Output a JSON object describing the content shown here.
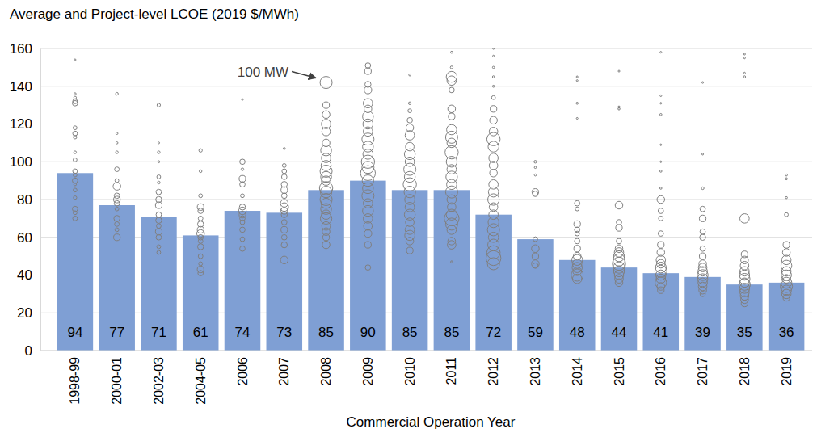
{
  "chart_data": {
    "type": "bar",
    "title": "Average and Project-level LCOE (2019 $/MWh)",
    "x_label": "Commercial Operation Year",
    "categories": [
      "1998-99",
      "2000-01",
      "2002-03",
      "2004-05",
      "2006",
      "2007",
      "2008",
      "2009",
      "2010",
      "2011",
      "2012",
      "2013",
      "2014",
      "2015",
      "2016",
      "2017",
      "2018",
      "2019"
    ],
    "values": [
      94,
      77,
      71,
      61,
      74,
      73,
      85,
      90,
      85,
      85,
      72,
      59,
      48,
      44,
      41,
      39,
      35,
      36
    ],
    "color": "#7f9fd4",
    "data_labels": true,
    "ylim": [
      0,
      160
    ],
    "yticks": [
      0,
      20,
      40,
      60,
      80,
      100,
      120,
      140,
      160
    ],
    "grid": true,
    "annotation": {
      "text": "100 MW",
      "category": "2008",
      "y": 142
    },
    "projects": [
      {
        "category": "1998-99",
        "y": [
          154,
          136,
          134,
          131,
          132,
          118,
          115,
          113,
          105,
          101,
          95,
          93,
          90,
          88,
          85,
          81,
          75,
          73,
          70
        ],
        "size": [
          2,
          3,
          5,
          20,
          15,
          10,
          15,
          8,
          5,
          10,
          15,
          10,
          20,
          5,
          10,
          8,
          20,
          10,
          15
        ]
      },
      {
        "category": "2000-01",
        "y": [
          136,
          115,
          110,
          105,
          96,
          90,
          87,
          82,
          80,
          78,
          75,
          70,
          67,
          64,
          60
        ],
        "size": [
          5,
          3,
          3,
          5,
          15,
          10,
          40,
          20,
          30,
          20,
          10,
          25,
          15,
          10,
          30
        ]
      },
      {
        "category": "2002-03",
        "y": [
          130,
          110,
          105,
          100,
          92,
          89,
          84,
          80,
          77,
          72,
          69,
          66,
          63,
          60,
          55,
          52
        ],
        "size": [
          8,
          2,
          5,
          3,
          10,
          5,
          20,
          25,
          30,
          20,
          25,
          15,
          30,
          20,
          10,
          10
        ]
      },
      {
        "category": "2004-05",
        "y": [
          106,
          95,
          82,
          76,
          74,
          70,
          67,
          64,
          62,
          60,
          58,
          55,
          50,
          46,
          43,
          41
        ],
        "size": [
          8,
          5,
          10,
          30,
          20,
          15,
          25,
          30,
          40,
          20,
          15,
          25,
          15,
          10,
          30,
          20
        ]
      },
      {
        "category": "2006",
        "y": [
          133,
          100,
          96,
          91,
          88,
          82,
          76,
          74,
          72,
          70,
          68,
          64,
          59,
          54
        ],
        "size": [
          2,
          20,
          5,
          30,
          20,
          10,
          25,
          40,
          30,
          20,
          15,
          20,
          15,
          20
        ]
      },
      {
        "category": "2007",
        "y": [
          107,
          98,
          95,
          92,
          88,
          85,
          82,
          78,
          76,
          74,
          72,
          68,
          64,
          60,
          56,
          48
        ],
        "size": [
          3,
          10,
          15,
          20,
          25,
          30,
          20,
          40,
          50,
          30,
          25,
          20,
          30,
          20,
          25,
          40
        ]
      },
      {
        "category": "2008",
        "y": [
          142,
          130,
          125,
          120,
          116,
          110,
          106,
          102,
          98,
          95,
          92,
          90,
          86,
          84,
          80,
          78,
          75,
          72,
          70,
          66,
          63,
          60,
          56
        ],
        "size": [
          100,
          30,
          40,
          60,
          50,
          40,
          80,
          60,
          70,
          100,
          80,
          60,
          120,
          90,
          100,
          70,
          80,
          60,
          90,
          50,
          40,
          30,
          40
        ]
      },
      {
        "category": "2009",
        "y": [
          151,
          148,
          141,
          138,
          131,
          128,
          124,
          120,
          116,
          112,
          108,
          104,
          100,
          97,
          94,
          90,
          86,
          82,
          78,
          74,
          70,
          66,
          62,
          56,
          44
        ],
        "size": [
          20,
          30,
          25,
          40,
          60,
          40,
          80,
          70,
          60,
          100,
          80,
          70,
          120,
          100,
          150,
          90,
          80,
          100,
          60,
          80,
          60,
          50,
          40,
          30,
          20
        ]
      },
      {
        "category": "2010",
        "y": [
          146,
          131,
          127,
          122,
          118,
          114,
          108,
          104,
          100,
          96,
          92,
          88,
          84,
          80,
          76,
          72,
          68,
          64,
          61,
          58,
          53
        ],
        "size": [
          3,
          5,
          10,
          20,
          40,
          60,
          50,
          80,
          60,
          100,
          80,
          120,
          90,
          70,
          60,
          80,
          50,
          60,
          70,
          40,
          30
        ]
      },
      {
        "category": "2011",
        "y": [
          158,
          150,
          145,
          143,
          138,
          128,
          124,
          117,
          113,
          110,
          105,
          100,
          96,
          92,
          88,
          84,
          80,
          76,
          72,
          70,
          67,
          64,
          58,
          56,
          47
        ],
        "size": [
          3,
          5,
          80,
          60,
          20,
          40,
          30,
          70,
          100,
          60,
          120,
          80,
          60,
          90,
          70,
          100,
          60,
          50,
          80,
          150,
          100,
          60,
          40,
          50,
          3
        ]
      },
      {
        "category": "2012",
        "y": [
          160,
          156,
          150,
          145,
          140,
          134,
          128,
          122,
          116,
          112,
          108,
          102,
          98,
          94,
          88,
          84,
          80,
          76,
          72,
          68,
          64,
          60,
          56,
          52,
          49,
          46
        ],
        "size": [
          2,
          2,
          3,
          3,
          3,
          10,
          30,
          40,
          50,
          120,
          80,
          60,
          50,
          40,
          60,
          70,
          90,
          50,
          60,
          80,
          100,
          70,
          90,
          120,
          150,
          100
        ]
      },
      {
        "category": "2013",
        "y": [
          100,
          97,
          93,
          84,
          83,
          59,
          54,
          50,
          46,
          45
        ],
        "size": [
          5,
          3,
          3,
          30,
          20,
          15,
          40,
          30,
          40,
          20
        ]
      },
      {
        "category": "2014",
        "y": [
          145,
          143,
          131,
          123,
          78,
          75,
          67,
          64,
          62,
          58,
          54,
          50,
          48,
          46,
          44,
          42,
          40,
          38
        ],
        "size": [
          2,
          2,
          3,
          2,
          20,
          10,
          30,
          20,
          15,
          20,
          30,
          40,
          80,
          60,
          70,
          50,
          100,
          60
        ]
      },
      {
        "category": "2015",
        "y": [
          148,
          129,
          128,
          77,
          68,
          65,
          58,
          54,
          52,
          50,
          48,
          46,
          44,
          42,
          40,
          38,
          36
        ],
        "size": [
          2,
          3,
          3,
          40,
          20,
          30,
          20,
          40,
          60,
          80,
          100,
          120,
          90,
          80,
          60,
          50,
          40
        ]
      },
      {
        "category": "2016",
        "y": [
          158,
          135,
          131,
          125,
          109,
          100,
          95,
          86,
          80,
          74,
          70,
          62,
          56,
          52,
          48,
          46,
          44,
          42,
          40,
          38,
          36,
          34,
          32
        ],
        "size": [
          2,
          2,
          2,
          3,
          2,
          2,
          3,
          3,
          40,
          20,
          15,
          20,
          30,
          40,
          60,
          50,
          80,
          100,
          70,
          60,
          90,
          40,
          30
        ]
      },
      {
        "category": "2017",
        "y": [
          142,
          104,
          86,
          75,
          70,
          63,
          60,
          54,
          50,
          46,
          44,
          42,
          40,
          38,
          36,
          34,
          32,
          30
        ],
        "size": [
          2,
          2,
          5,
          20,
          30,
          20,
          25,
          20,
          30,
          40,
          50,
          60,
          80,
          70,
          60,
          50,
          40,
          20
        ]
      },
      {
        "category": "2018",
        "y": [
          157,
          155,
          147,
          145,
          70,
          51,
          48,
          45,
          42,
          40,
          38,
          36,
          35,
          33,
          31,
          29,
          27,
          25
        ],
        "size": [
          2,
          2,
          2,
          3,
          60,
          30,
          40,
          50,
          60,
          70,
          80,
          60,
          90,
          70,
          60,
          50,
          40,
          30
        ]
      },
      {
        "category": "2019",
        "y": [
          93,
          91,
          81,
          72,
          56,
          52,
          48,
          45,
          42,
          40,
          38,
          36,
          34,
          32,
          30,
          28
        ],
        "size": [
          3,
          3,
          3,
          10,
          30,
          40,
          60,
          80,
          60,
          70,
          50,
          80,
          100,
          70,
          60,
          30
        ]
      }
    ]
  }
}
